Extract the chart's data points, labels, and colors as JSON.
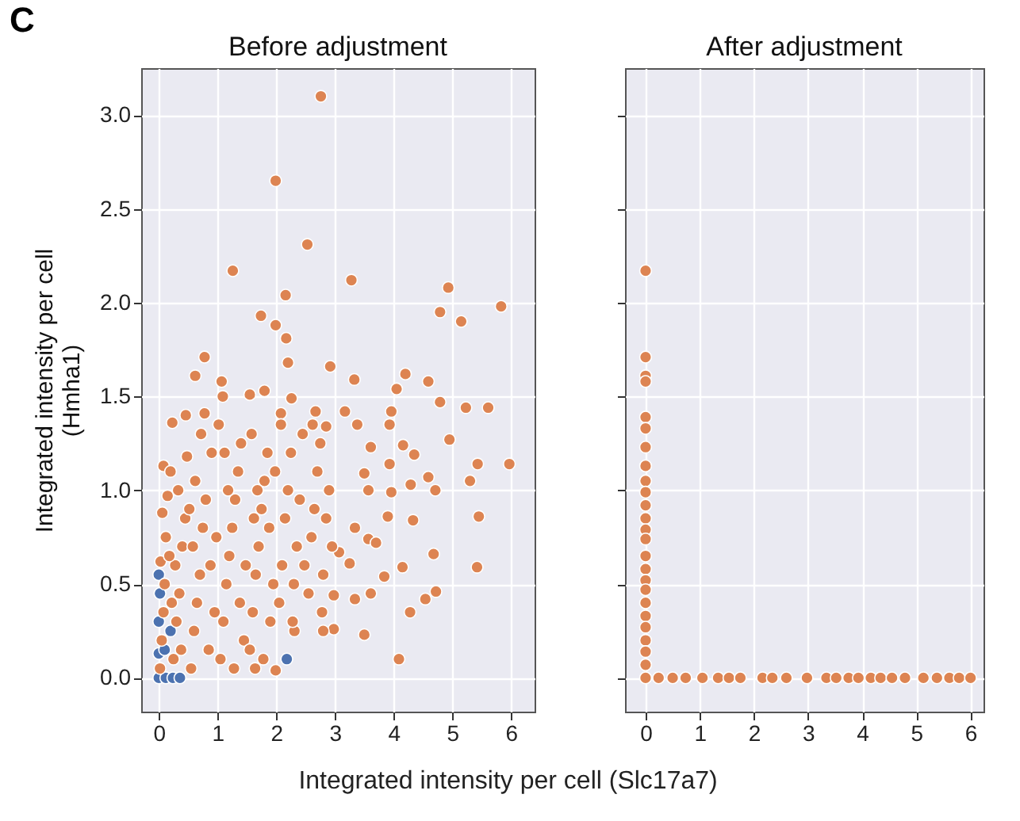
{
  "chart_data": [
    {
      "type": "scatter",
      "title": "Before adjustment",
      "xlabel": "Integrated intensity per cell (Slc17a7)",
      "ylabel": "Integrated intensity per cell\n(Hmha1)",
      "annotations": [
        "C"
      ],
      "marker": "circle",
      "grid": true,
      "xlim": [
        -0.3,
        6.4
      ],
      "ylim": [
        -0.18,
        3.25
      ],
      "xticks": [
        0,
        1,
        2,
        3,
        4,
        5,
        6
      ],
      "yticks": [
        {
          "value": 0,
          "label": "0.0"
        },
        {
          "value": 0.5,
          "label": "0.5"
        },
        {
          "value": 1,
          "label": "1.0"
        },
        {
          "value": 1.5,
          "label": "1.5"
        },
        {
          "value": 2,
          "label": "2.0"
        },
        {
          "value": 2.5,
          "label": "2.5"
        },
        {
          "value": 3,
          "label": "3.0"
        }
      ],
      "series": [
        {
          "color": "#4c72b0",
          "x": [
            0,
            0.12,
            0.24,
            0.36,
            0,
            0,
            0.02,
            0,
            0.1,
            0.2,
            2.18
          ],
          "values": [
            0,
            0,
            0,
            0,
            0.13,
            0.3,
            0.45,
            0.55,
            0.15,
            0.25,
            0.1
          ]
        },
        {
          "color": "#dd8452",
          "x": [
            2.76,
            1.99,
            2.53,
            1.26,
            3.28,
            4.93,
            5.83,
            2.16,
            4.79,
            5.15,
            1.74,
            1.99,
            2.17,
            2.2,
            2.92,
            0.78,
            0.62,
            3.33,
            4.2,
            4.05,
            4.59,
            4.79,
            5.23,
            5.61,
            4.95,
            5.97,
            5.43,
            5.3,
            5.45,
            5.42,
            4.68,
            4.72,
            4.54,
            4.28,
            4.09,
            3.5,
            4.15,
            4.33,
            4.29,
            4.59,
            4.71,
            4.35,
            4.16,
            3.96,
            3.93,
            3.93,
            3.96,
            3.9,
            3.84,
            3.61,
            3.34,
            2.98,
            2.8,
            2.31,
            1.99,
            1.64,
            2.98,
            3.61,
            3.38,
            3.5,
            3.57,
            3.34,
            3.57,
            3.7,
            3.07,
            3.25,
            2.26,
            2.08,
            1.8,
            1.55,
            1.07,
            1.09,
            0.23,
            0.46,
            0.78,
            0.08,
            2.67,
            2.85,
            3.17,
            0.02,
            0.05,
            0.08,
            0.1,
            0.03,
            0.12,
            0.06,
            0.15,
            0.2,
            0.25,
            0.3,
            0.35,
            0.28,
            0.4,
            0.45,
            0.33,
            0.48,
            0.38,
            0.22,
            0.18,
            0.55,
            0.6,
            0.65,
            0.7,
            0.58,
            0.75,
            0.8,
            0.62,
            0.9,
            0.85,
            0.95,
            0.72,
            0.88,
            0.98,
            0.52,
            1.05,
            1.1,
            1.15,
            1.2,
            1.25,
            1.3,
            1.35,
            1.4,
            1.45,
            1.02,
            1.18,
            1.38,
            1.48,
            1.28,
            1.12,
            1.55,
            1.6,
            1.65,
            1.7,
            1.75,
            1.8,
            1.85,
            1.9,
            1.95,
            1.58,
            1.68,
            1.88,
            1.98,
            1.78,
            1.62,
            2.05,
            2.1,
            2.15,
            2.2,
            2.25,
            2.3,
            2.35,
            2.4,
            2.45,
            2.08,
            2.28,
            2.48,
            2.55,
            2.6,
            2.65,
            2.7,
            2.75,
            2.8,
            2.85,
            2.9,
            2.95,
            2.62,
            2.78
          ],
          "values": [
            3.1,
            2.65,
            2.31,
            2.17,
            2.12,
            2.08,
            1.98,
            2.04,
            1.95,
            1.9,
            1.93,
            1.88,
            1.81,
            1.68,
            1.66,
            1.71,
            1.61,
            1.59,
            1.62,
            1.54,
            1.58,
            1.47,
            1.44,
            1.44,
            1.27,
            1.14,
            1.14,
            1.05,
            0.86,
            0.59,
            0.66,
            0.46,
            0.42,
            0.35,
            0.1,
            0.23,
            0.59,
            0.84,
            1.03,
            1.07,
            1,
            1.19,
            1.24,
            1.42,
            1.35,
            1.14,
            0.99,
            0.86,
            0.54,
            0.45,
            0.42,
            0.26,
            0.25,
            0.25,
            0.04,
            0.05,
            0.44,
            1.23,
            1.35,
            1.09,
            1,
            0.8,
            0.74,
            0.72,
            0.67,
            0.61,
            1.49,
            1.41,
            1.53,
            1.51,
            1.58,
            1.5,
            1.36,
            1.4,
            1.41,
            1.13,
            1.42,
            1.34,
            1.42,
            0.05,
            0.2,
            0.35,
            0.5,
            0.62,
            0.75,
            0.88,
            0.97,
            1.1,
            0.1,
            0.3,
            0.45,
            0.6,
            0.7,
            0.85,
            1,
            1.18,
            0.15,
            0.4,
            0.65,
            0.05,
            0.25,
            0.4,
            0.55,
            0.7,
            0.8,
            0.95,
            1.05,
            1.2,
            0.15,
            0.35,
            1.3,
            0.6,
            0.75,
            0.9,
            0.1,
            0.3,
            0.5,
            0.65,
            0.8,
            0.95,
            1.1,
            1.25,
            0.2,
            1.35,
            1,
            0.4,
            0.6,
            0.05,
            1.2,
            0.15,
            0.35,
            0.55,
            0.7,
            0.9,
            1.05,
            1.2,
            0.3,
            0.5,
            1.3,
            1,
            0.8,
            1.1,
            0.1,
            0.85,
            0.4,
            0.6,
            0.85,
            1,
            1.2,
            0.5,
            0.7,
            0.95,
            1.3,
            1.35,
            0.3,
            0.6,
            0.45,
            0.75,
            0.9,
            1.1,
            1.25,
            0.55,
            0.85,
            1,
            0.7,
            1.35,
            0.35
          ]
        }
      ]
    },
    {
      "type": "scatter",
      "title": "After adjustment",
      "marker": "circle",
      "grid": true,
      "tick_labels": "x",
      "xlim": [
        -0.38,
        6.24
      ],
      "ylim": [
        -0.18,
        3.25
      ],
      "xticks": [
        0,
        1,
        2,
        3,
        4,
        5,
        6
      ],
      "yticks": [
        0,
        0.5,
        1,
        1.5,
        2,
        2.5,
        3
      ],
      "series": [
        {
          "color": "#dd8452",
          "x": [
            0,
            0,
            0,
            0,
            0,
            0,
            0,
            0,
            0,
            0,
            0,
            0,
            0,
            0,
            0,
            0,
            0,
            0,
            0,
            0,
            0,
            0,
            0,
            0,
            0,
            0.24,
            0.5,
            0.74,
            1.05,
            1.34,
            1.54,
            1.75,
            2.16,
            2.34,
            2.6,
            2.98,
            3.34,
            3.52,
            3.75,
            3.93,
            4.16,
            4.34,
            4.55,
            4.79,
            5.13,
            5.38,
            5.61,
            5.79,
            6
          ],
          "values": [
            2.17,
            1.71,
            1.61,
            1.58,
            1.39,
            1.33,
            1.23,
            1.13,
            1.05,
            0.99,
            0.92,
            0.85,
            0.79,
            0.74,
            0.65,
            0.58,
            0.52,
            0.47,
            0.4,
            0.33,
            0.27,
            0.2,
            0.14,
            0.07,
            0,
            0,
            0,
            0,
            0,
            0,
            0,
            0,
            0,
            0,
            0,
            0,
            0,
            0,
            0,
            0,
            0,
            0,
            0,
            0,
            0,
            0,
            0,
            0,
            0
          ]
        }
      ]
    }
  ]
}
